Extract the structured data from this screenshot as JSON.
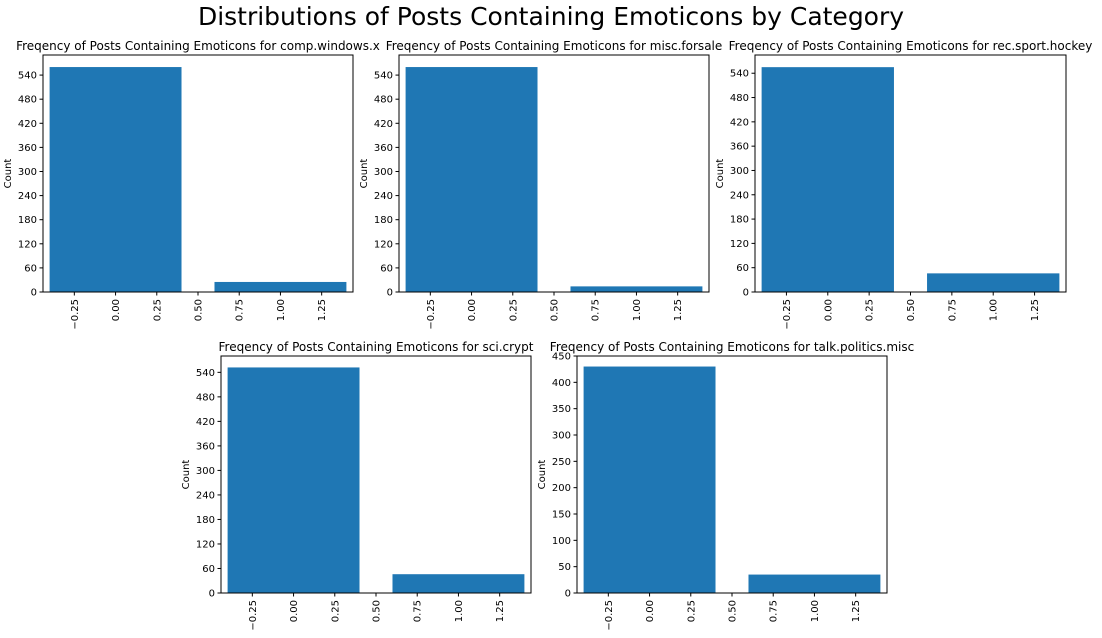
{
  "figure": {
    "title": "Distributions of Posts Containing Emoticons by Category",
    "bar_color": "#1f77b4"
  },
  "chart_data": [
    {
      "type": "bar",
      "title": "Freqency of Posts Containing Emoticons for comp.windows.x",
      "xlabel": "",
      "ylabel": "Count",
      "categories": [
        0,
        1
      ],
      "values": [
        560,
        25
      ],
      "bar_width": 0.8,
      "xlim": [
        -0.44,
        1.44
      ],
      "ylim": [
        0,
        590
      ],
      "xticks": [
        "−0.25",
        "0.00",
        "0.25",
        "0.50",
        "0.75",
        "1.00",
        "1.25"
      ],
      "yticks": [
        "0",
        "60",
        "120",
        "180",
        "240",
        "300",
        "360",
        "420",
        "480",
        "540"
      ],
      "grid": false
    },
    {
      "type": "bar",
      "title": "Freqency of Posts Containing Emoticons for misc.forsale",
      "xlabel": "",
      "ylabel": "Count",
      "categories": [
        0,
        1
      ],
      "values": [
        560,
        14
      ],
      "bar_width": 0.8,
      "xlim": [
        -0.44,
        1.44
      ],
      "ylim": [
        0,
        590
      ],
      "xticks": [
        "−0.25",
        "0.00",
        "0.25",
        "0.50",
        "0.75",
        "1.00",
        "1.25"
      ],
      "yticks": [
        "0",
        "60",
        "120",
        "180",
        "240",
        "300",
        "360",
        "420",
        "480",
        "540"
      ],
      "grid": false
    },
    {
      "type": "bar",
      "title": "Freqency of Posts Containing Emoticons for rec.sport.hockey",
      "xlabel": "",
      "ylabel": "Count",
      "categories": [
        0,
        1
      ],
      "values": [
        555,
        46
      ],
      "bar_width": 0.8,
      "xlim": [
        -0.44,
        1.44
      ],
      "ylim": [
        0,
        585
      ],
      "xticks": [
        "−0.25",
        "0.00",
        "0.25",
        "0.50",
        "0.75",
        "1.00",
        "1.25"
      ],
      "yticks": [
        "0",
        "60",
        "120",
        "180",
        "240",
        "300",
        "360",
        "420",
        "480",
        "540"
      ],
      "grid": false
    },
    {
      "type": "bar",
      "title": "Freqency of Posts Containing Emoticons for sci.crypt",
      "xlabel": "",
      "ylabel": "Count",
      "categories": [
        0,
        1
      ],
      "values": [
        552,
        46
      ],
      "bar_width": 0.8,
      "xlim": [
        -0.44,
        1.44
      ],
      "ylim": [
        0,
        580
      ],
      "xticks": [
        "−0.25",
        "0.00",
        "0.25",
        "0.50",
        "0.75",
        "1.00",
        "1.25"
      ],
      "yticks": [
        "0",
        "60",
        "120",
        "180",
        "240",
        "300",
        "360",
        "420",
        "480",
        "540"
      ],
      "grid": false
    },
    {
      "type": "bar",
      "title": "Freqency of Posts Containing Emoticons for talk.politics.misc",
      "xlabel": "",
      "ylabel": "Count",
      "categories": [
        0,
        1
      ],
      "values": [
        430,
        35
      ],
      "bar_width": 0.8,
      "xlim": [
        -0.44,
        1.44
      ],
      "ylim": [
        0,
        450
      ],
      "xticks": [
        "−0.25",
        "0.00",
        "0.25",
        "0.50",
        "0.75",
        "1.00",
        "1.25"
      ],
      "yticks": [
        "0",
        "50",
        "100",
        "150",
        "200",
        "250",
        "300",
        "350",
        "400",
        "450"
      ],
      "grid": false
    }
  ]
}
